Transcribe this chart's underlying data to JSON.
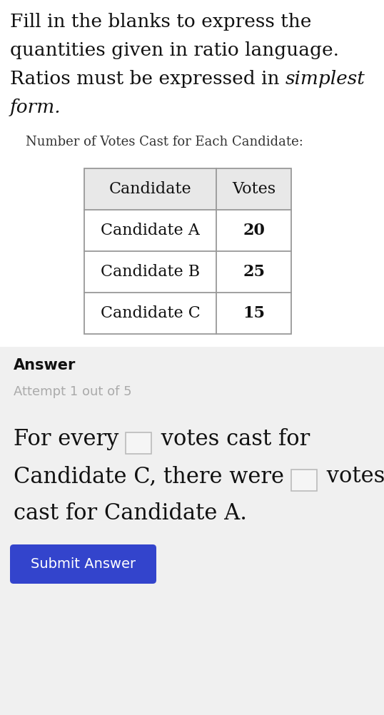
{
  "bg_color": "#ffffff",
  "answer_bg_color": "#f0f0f0",
  "title_line1": "Fill in the blanks to express the",
  "title_line2": "quantities given in ratio language.",
  "title_line3_normal": "Ratios must be expressed in ",
  "title_line3_italic": "simplest",
  "title_line4_italic": "form.",
  "table_title": "Number of Votes Cast for Each Candidate:",
  "table_headers": [
    "Candidate",
    "Votes"
  ],
  "table_rows": [
    [
      "Candidate A",
      "20"
    ],
    [
      "Candidate B",
      "25"
    ],
    [
      "Candidate C",
      "15"
    ]
  ],
  "table_header_bg": "#e8e8e8",
  "table_border_color": "#999999",
  "answer_label": "Answer",
  "attempt_text": "Attempt 1 out of 5",
  "button_text": "Submit Answer",
  "button_color": "#3344cc",
  "button_text_color": "#ffffff",
  "blank_border_color": "#bbbbbb",
  "blank_fill_color": "#f5f5f5",
  "title_fontsize": 19,
  "table_title_fontsize": 13,
  "table_fontsize": 16,
  "sentence_fontsize": 22,
  "answer_label_fontsize": 15,
  "attempt_fontsize": 13
}
